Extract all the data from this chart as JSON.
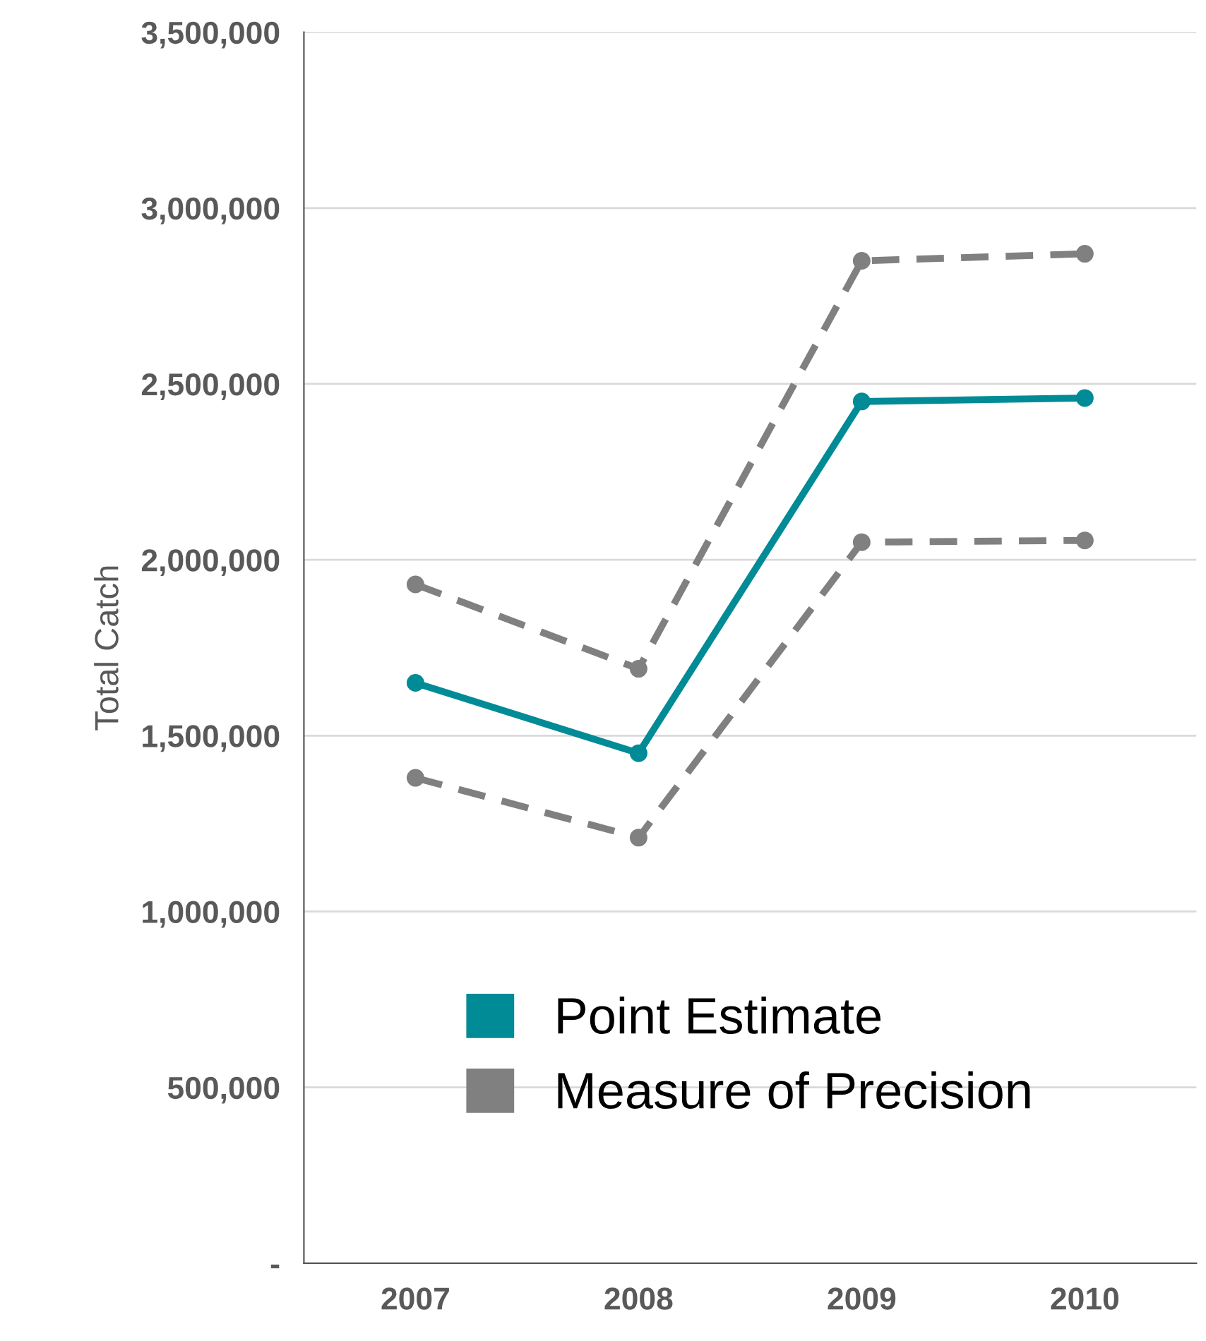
{
  "chart_data": {
    "type": "line",
    "ylabel": "Total Catch",
    "categories": [
      "2007",
      "2008",
      "2009",
      "2010"
    ],
    "series": [
      {
        "name": "Point Estimate",
        "color": "#008b96",
        "line_style": "solid",
        "values": [
          1650000,
          1450000,
          2450000,
          2460000
        ]
      },
      {
        "name": "Measure of Precision",
        "color": "#808080",
        "line_style": "dashed",
        "values": [
          1930000,
          1690000,
          2850000,
          2870000
        ]
      },
      {
        "color": "#808080",
        "line_style": "dashed",
        "values": [
          1380000,
          1210000,
          2050000,
          2055000
        ]
      }
    ],
    "ylim": [
      0,
      3500000
    ],
    "yticks": [
      {
        "value": 0,
        "label": "-"
      },
      {
        "value": 500000,
        "label": "500,000"
      },
      {
        "value": 1000000,
        "label": "1,000,000"
      },
      {
        "value": 1500000,
        "label": "1,500,000"
      },
      {
        "value": 2000000,
        "label": "2,000,000"
      },
      {
        "value": 2500000,
        "label": "2,500,000"
      },
      {
        "value": 3000000,
        "label": "3,000,000"
      },
      {
        "value": 3500000,
        "label": "3,500,000"
      }
    ],
    "grid": "y",
    "legend": "bottom",
    "marker": "circle"
  }
}
